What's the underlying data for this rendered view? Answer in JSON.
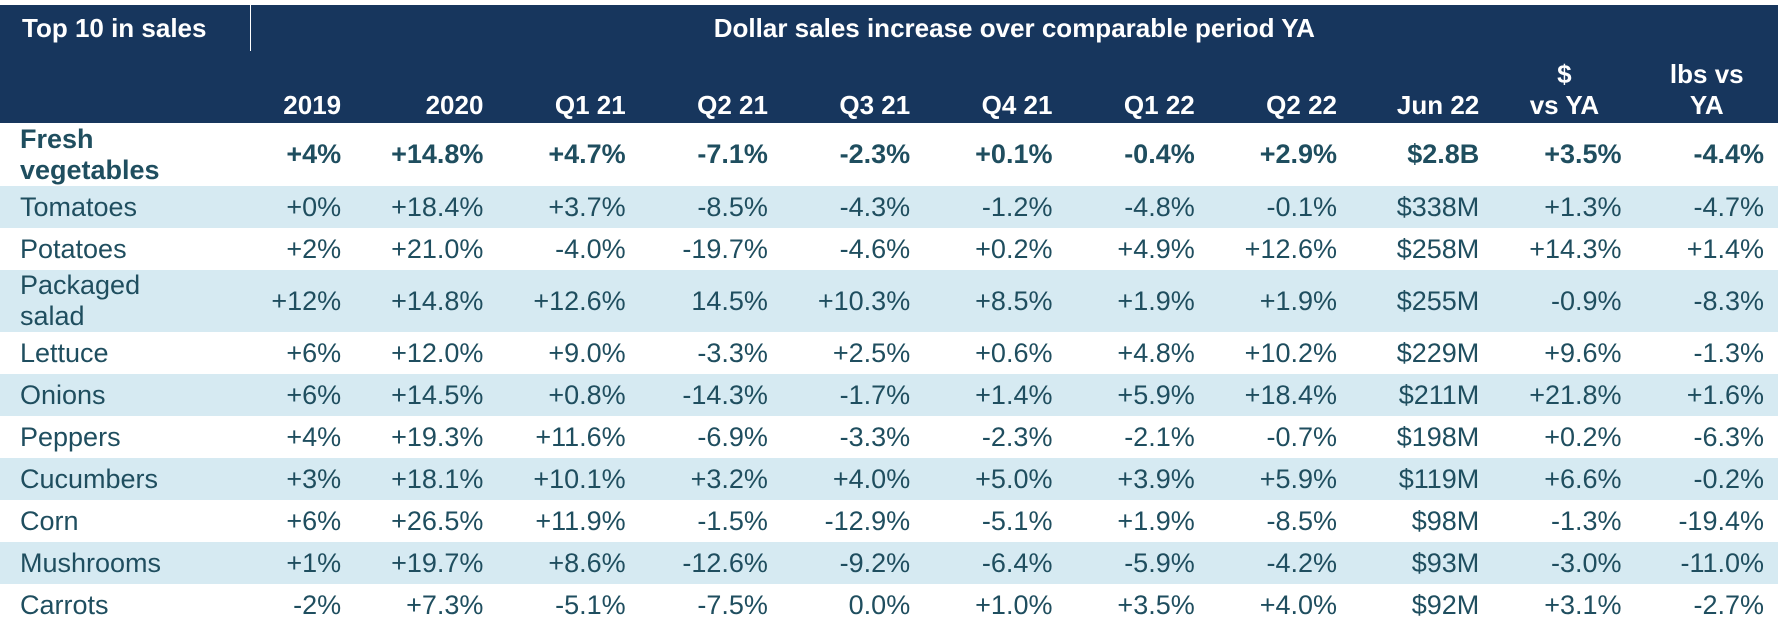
{
  "header": {
    "top_left": "Top 10 in sales",
    "top_right": "Dollar sales increase over comparable period YA",
    "columns": [
      "2019",
      "2020",
      "Q1 21",
      "Q2 21",
      "Q3 21",
      "Q4 21",
      "Q1 22",
      "Q2 22",
      "Jun 22"
    ],
    "dollar_vs_ya": [
      "$",
      "vs YA"
    ],
    "lbs_vs_ya": [
      "lbs vs",
      "YA"
    ]
  },
  "rows": [
    {
      "label": [
        "Fresh",
        "vegetables"
      ],
      "values": [
        "+4%",
        "+14.8%",
        "+4.7%",
        "-7.1%",
        "-2.3%",
        "+0.1%",
        "-0.4%",
        "+2.9%",
        "$2.8B",
        "+3.5%",
        "-4.4%"
      ]
    },
    {
      "label": [
        "Tomatoes"
      ],
      "values": [
        "+0%",
        "+18.4%",
        "+3.7%",
        "-8.5%",
        "-4.3%",
        "-1.2%",
        "-4.8%",
        "-0.1%",
        "$338M",
        "+1.3%",
        "-4.7%"
      ]
    },
    {
      "label": [
        "Potatoes"
      ],
      "values": [
        "+2%",
        "+21.0%",
        "-4.0%",
        "-19.7%",
        "-4.6%",
        "+0.2%",
        "+4.9%",
        "+12.6%",
        "$258M",
        "+14.3%",
        "+1.4%"
      ]
    },
    {
      "label": [
        "Packaged",
        "salad"
      ],
      "values": [
        "+12%",
        "+14.8%",
        "+12.6%",
        "14.5%",
        "+10.3%",
        "+8.5%",
        "+1.9%",
        "+1.9%",
        "$255M",
        "-0.9%",
        "-8.3%"
      ]
    },
    {
      "label": [
        "Lettuce"
      ],
      "values": [
        "+6%",
        "+12.0%",
        "+9.0%",
        "-3.3%",
        "+2.5%",
        "+0.6%",
        "+4.8%",
        "+10.2%",
        "$229M",
        "+9.6%",
        "-1.3%"
      ]
    },
    {
      "label": [
        "Onions"
      ],
      "values": [
        "+6%",
        "+14.5%",
        "+0.8%",
        "-14.3%",
        "-1.7%",
        "+1.4%",
        "+5.9%",
        "+18.4%",
        "$211M",
        "+21.8%",
        "+1.6%"
      ]
    },
    {
      "label": [
        "Peppers"
      ],
      "values": [
        "+4%",
        "+19.3%",
        "+11.6%",
        "-6.9%",
        "-3.3%",
        "-2.3%",
        "-2.1%",
        "-0.7%",
        "$198M",
        "+0.2%",
        "-6.3%"
      ]
    },
    {
      "label": [
        "Cucumbers"
      ],
      "values": [
        "+3%",
        "+18.1%",
        "+10.1%",
        "+3.2%",
        "+4.0%",
        "+5.0%",
        "+3.9%",
        "+5.9%",
        "$119M",
        "+6.6%",
        "-0.2%"
      ]
    },
    {
      "label": [
        "Corn"
      ],
      "values": [
        "+6%",
        "+26.5%",
        "+11.9%",
        "-1.5%",
        "-12.9%",
        "-5.1%",
        "+1.9%",
        "-8.5%",
        "$98M",
        "-1.3%",
        "-19.4%"
      ]
    },
    {
      "label": [
        "Mushrooms"
      ],
      "values": [
        "+1%",
        "+19.7%",
        "+8.6%",
        "-12.6%",
        "-9.2%",
        "-6.4%",
        "-5.9%",
        "-4.2%",
        "$93M",
        "-3.0%",
        "-11.0%"
      ]
    },
    {
      "label": [
        "Carrots"
      ],
      "values": [
        "-2%",
        "+7.3%",
        "-5.1%",
        "-7.5%",
        "0.0%",
        "+1.0%",
        "+3.5%",
        "+4.0%",
        "$92M",
        "+3.1%",
        "-2.7%"
      ]
    }
  ],
  "colors": {
    "header_bg": "#17365d",
    "band_bg": "#d6eaf2",
    "text": "#1f4e5f"
  }
}
